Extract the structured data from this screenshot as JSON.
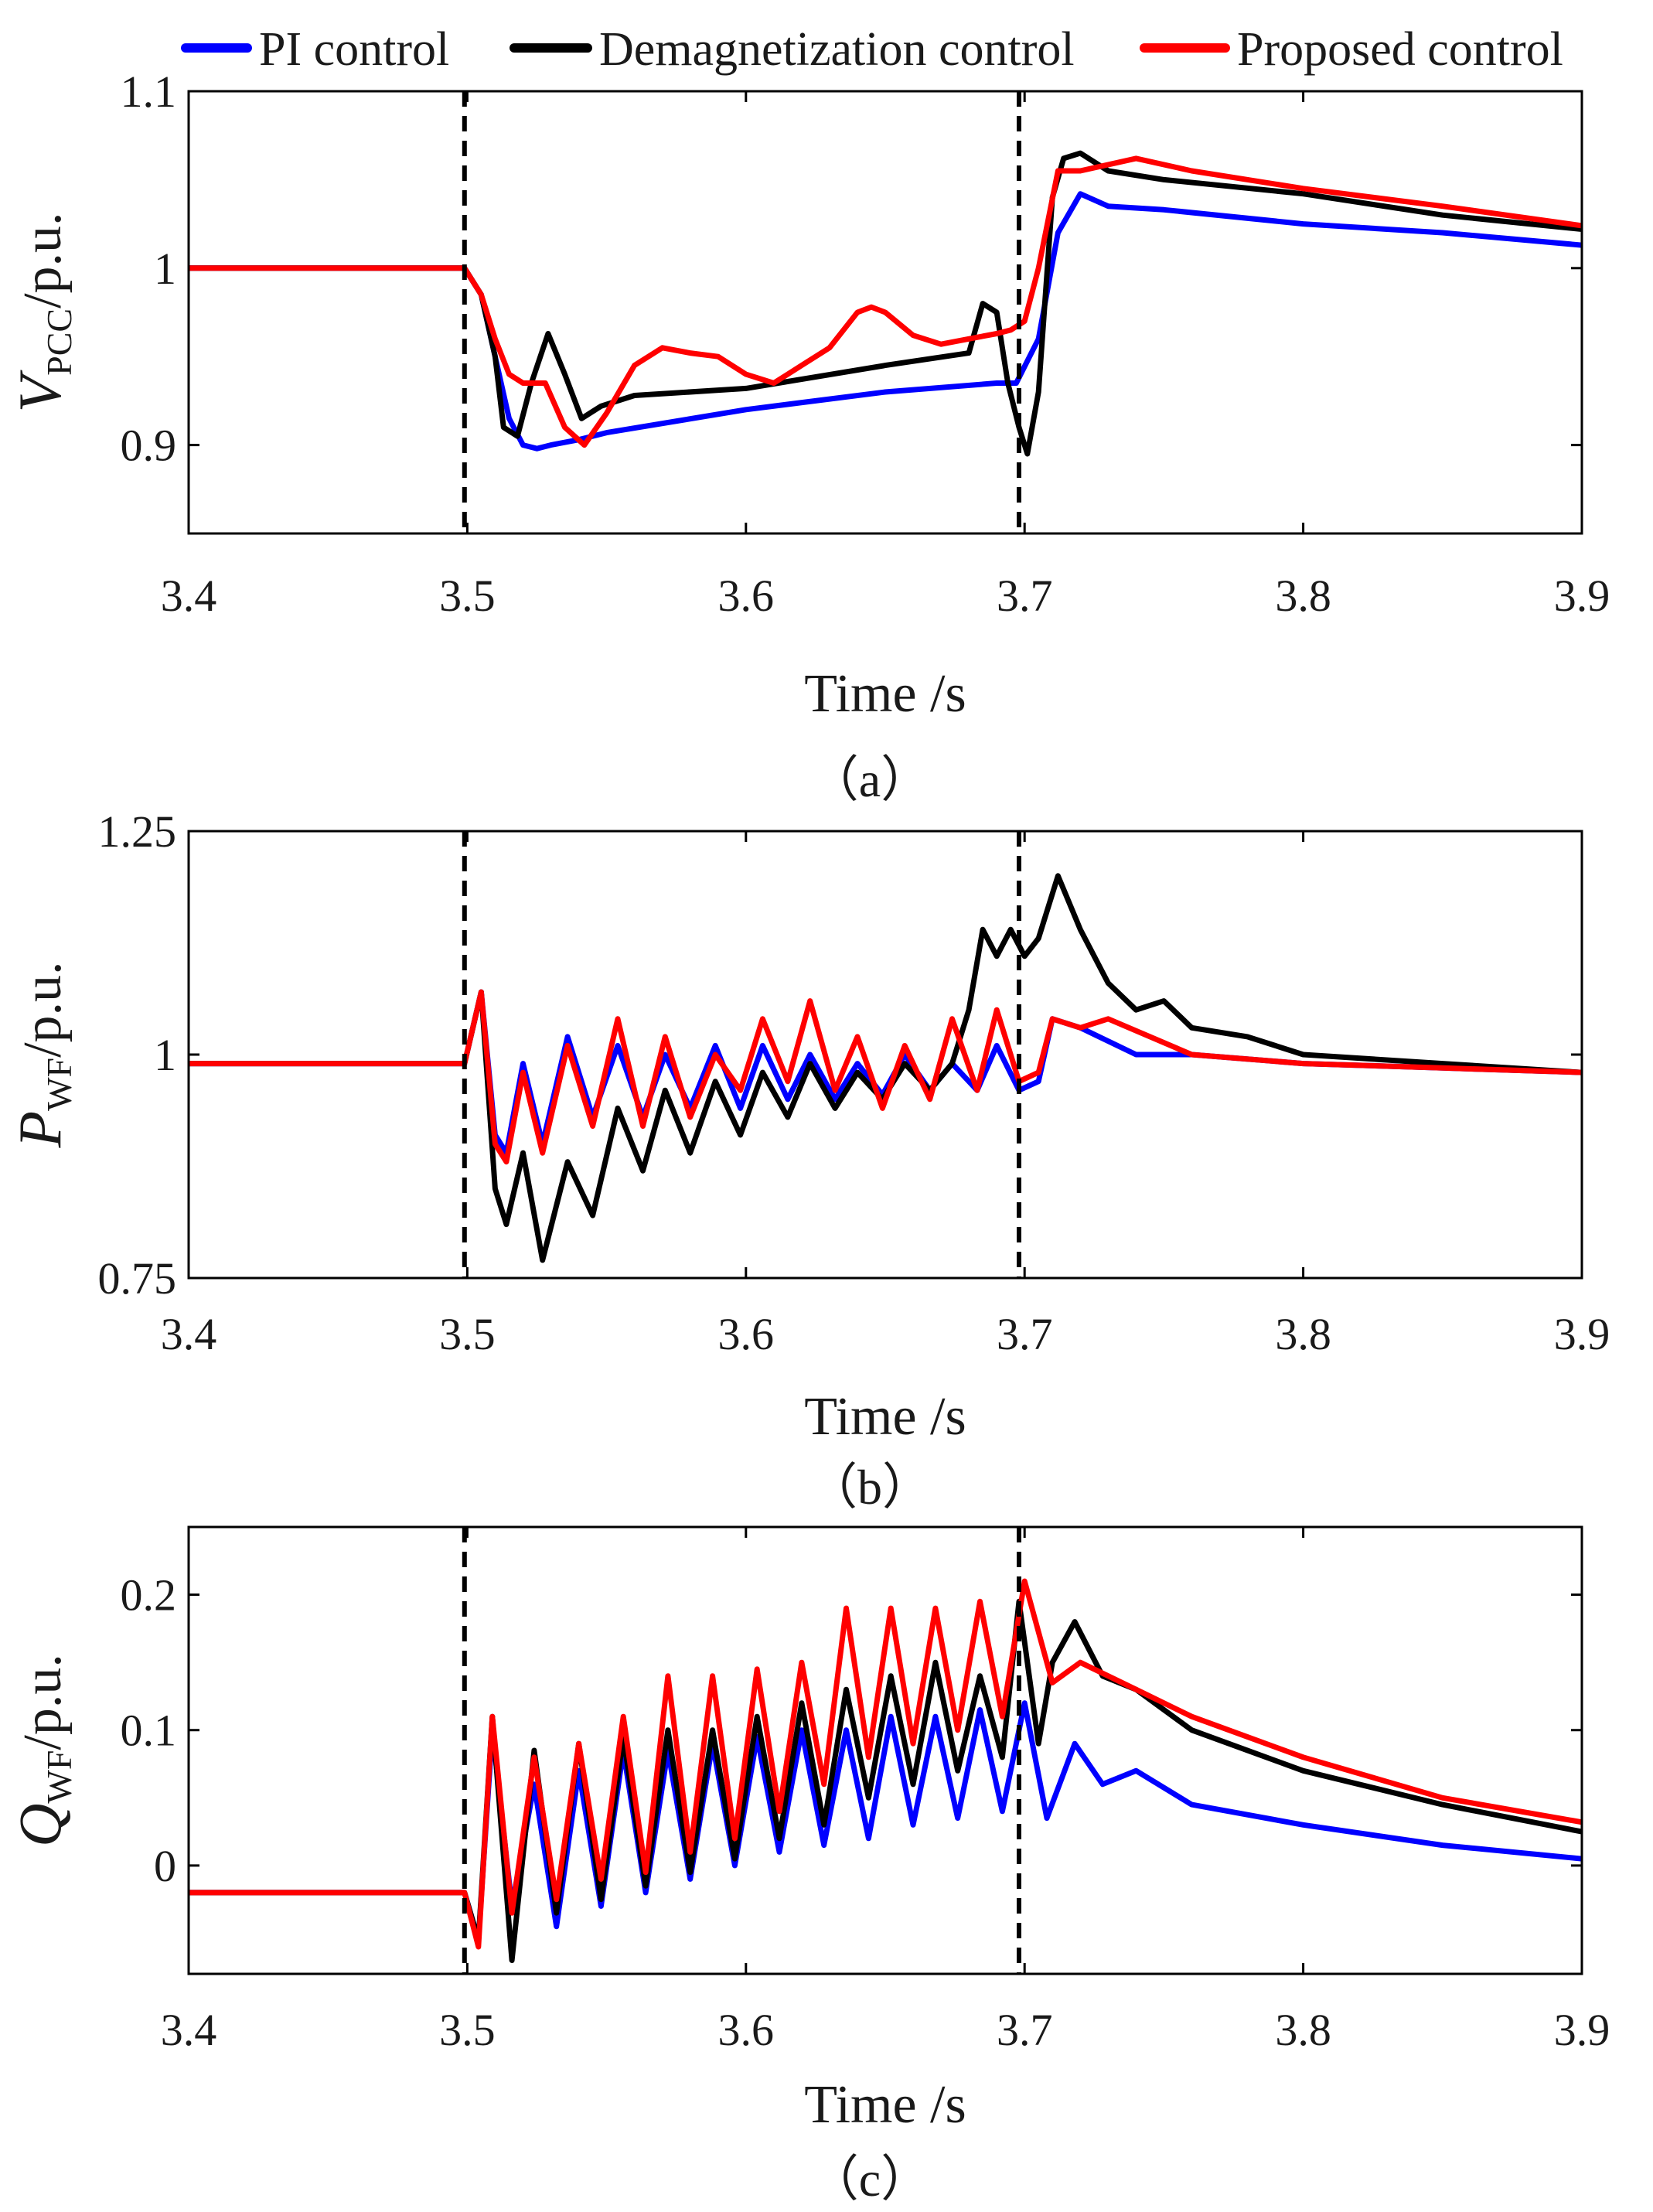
{
  "figure": {
    "legend": [
      {
        "label": "PI control",
        "color": "#0000ff"
      },
      {
        "label": "Demagnetization control",
        "color": "#000000"
      },
      {
        "label": "Proposed control",
        "color": "#ff0000"
      }
    ]
  },
  "chart_data": [
    {
      "type": "line",
      "panel": "a",
      "caption": "（a）",
      "xlabel": "Time /s",
      "ylabel": {
        "main": "V",
        "sub": "PCC",
        "rest": "/p.u."
      },
      "xlim": [
        3.4,
        3.9
      ],
      "ylim": [
        0.85,
        1.1
      ],
      "xticks": [
        3.4,
        3.5,
        3.6,
        3.7,
        3.8,
        3.9
      ],
      "xtick_labels": [
        "3.4",
        "3.5",
        "3.6",
        "3.7",
        "3.8",
        "3.9"
      ],
      "yticks": [
        0.9,
        1.0,
        1.1
      ],
      "ytick_labels": [
        "0.9",
        "1",
        "1.1"
      ],
      "vlines": [
        3.499,
        3.698
      ],
      "series": [
        {
          "name": "PI control",
          "color": "#0000ff",
          "x": [
            3.4,
            3.499,
            3.505,
            3.51,
            3.515,
            3.52,
            3.525,
            3.53,
            3.54,
            3.55,
            3.6,
            3.65,
            3.69,
            3.697,
            3.705,
            3.712,
            3.72,
            3.73,
            3.75,
            3.8,
            3.85,
            3.9
          ],
          "y": [
            1.0,
            1.0,
            0.985,
            0.95,
            0.915,
            0.9,
            0.898,
            0.9,
            0.903,
            0.907,
            0.92,
            0.93,
            0.935,
            0.935,
            0.96,
            1.02,
            1.042,
            1.035,
            1.033,
            1.025,
            1.02,
            1.013
          ]
        },
        {
          "name": "Demagnetization control",
          "color": "#000000",
          "x": [
            3.4,
            3.499,
            3.505,
            3.51,
            3.513,
            3.518,
            3.523,
            3.529,
            3.535,
            3.541,
            3.548,
            3.56,
            3.6,
            3.65,
            3.68,
            3.685,
            3.69,
            3.694,
            3.698,
            3.701,
            3.705,
            3.71,
            3.714,
            3.72,
            3.73,
            3.75,
            3.8,
            3.85,
            3.9
          ],
          "y": [
            1.0,
            1.0,
            0.985,
            0.95,
            0.91,
            0.905,
            0.935,
            0.963,
            0.94,
            0.915,
            0.922,
            0.928,
            0.932,
            0.945,
            0.952,
            0.98,
            0.975,
            0.935,
            0.91,
            0.895,
            0.93,
            1.04,
            1.062,
            1.065,
            1.055,
            1.05,
            1.042,
            1.03,
            1.022
          ]
        },
        {
          "name": "Proposed control",
          "color": "#ff0000",
          "x": [
            3.4,
            3.499,
            3.505,
            3.51,
            3.515,
            3.52,
            3.528,
            3.535,
            3.542,
            3.55,
            3.56,
            3.57,
            3.58,
            3.59,
            3.6,
            3.61,
            3.62,
            3.63,
            3.64,
            3.645,
            3.65,
            3.66,
            3.67,
            3.68,
            3.69,
            3.695,
            3.7,
            3.705,
            3.712,
            3.72,
            3.74,
            3.76,
            3.8,
            3.85,
            3.9
          ],
          "y": [
            1.0,
            1.0,
            0.985,
            0.96,
            0.94,
            0.935,
            0.935,
            0.91,
            0.9,
            0.918,
            0.945,
            0.955,
            0.952,
            0.95,
            0.94,
            0.935,
            0.945,
            0.955,
            0.975,
            0.978,
            0.975,
            0.962,
            0.957,
            0.96,
            0.963,
            0.965,
            0.97,
            1.0,
            1.055,
            1.055,
            1.062,
            1.055,
            1.045,
            1.035,
            1.024
          ]
        }
      ]
    },
    {
      "type": "line",
      "panel": "b",
      "caption": "（b）",
      "xlabel": "Time /s",
      "ylabel": {
        "main": "P",
        "sub": "WF",
        "rest": "/p.u."
      },
      "xlim": [
        3.4,
        3.9
      ],
      "ylim": [
        0.75,
        1.25
      ],
      "xticks": [
        3.4,
        3.5,
        3.6,
        3.7,
        3.8,
        3.9
      ],
      "xtick_labels": [
        "3.4",
        "3.5",
        "3.6",
        "3.7",
        "3.8",
        "3.9"
      ],
      "yticks": [
        0.75,
        1.0,
        1.25
      ],
      "ytick_labels": [
        "0.75",
        "1",
        "1.25"
      ],
      "vlines": [
        3.499,
        3.698
      ],
      "series": [
        {
          "name": "PI control",
          "color": "#0000ff",
          "x": [
            3.4,
            3.499,
            3.505,
            3.51,
            3.514,
            3.52,
            3.527,
            3.536,
            3.545,
            3.554,
            3.563,
            3.571,
            3.58,
            3.589,
            3.598,
            3.606,
            3.615,
            3.623,
            3.632,
            3.64,
            3.649,
            3.657,
            3.666,
            3.674,
            3.683,
            3.69,
            3.698,
            3.705,
            3.71,
            3.72,
            3.74,
            3.76,
            3.8,
            3.85,
            3.9
          ],
          "y": [
            0.99,
            0.99,
            1.07,
            0.91,
            0.89,
            0.99,
            0.9,
            1.02,
            0.93,
            1.01,
            0.93,
            1.0,
            0.94,
            1.01,
            0.94,
            1.01,
            0.95,
            1.0,
            0.95,
            0.99,
            0.955,
            1.0,
            0.96,
            0.99,
            0.96,
            1.01,
            0.96,
            0.97,
            1.04,
            1.03,
            1.0,
            1.0,
            0.99,
            0.985,
            0.98
          ]
        },
        {
          "name": "Demagnetization control",
          "color": "#000000",
          "x": [
            3.4,
            3.499,
            3.505,
            3.51,
            3.514,
            3.52,
            3.527,
            3.536,
            3.545,
            3.554,
            3.563,
            3.571,
            3.58,
            3.589,
            3.598,
            3.606,
            3.615,
            3.623,
            3.632,
            3.64,
            3.649,
            3.657,
            3.666,
            3.674,
            3.68,
            3.685,
            3.69,
            3.695,
            3.7,
            3.705,
            3.712,
            3.72,
            3.73,
            3.74,
            3.75,
            3.76,
            3.78,
            3.8,
            3.85,
            3.9
          ],
          "y": [
            0.99,
            0.99,
            1.07,
            0.85,
            0.81,
            0.89,
            0.77,
            0.88,
            0.82,
            0.94,
            0.87,
            0.96,
            0.89,
            0.97,
            0.91,
            0.98,
            0.93,
            0.99,
            0.94,
            0.98,
            0.95,
            0.99,
            0.96,
            0.99,
            1.05,
            1.14,
            1.11,
            1.14,
            1.11,
            1.13,
            1.2,
            1.14,
            1.08,
            1.05,
            1.06,
            1.03,
            1.02,
            1.0,
            0.99,
            0.98
          ]
        },
        {
          "name": "Proposed control",
          "color": "#ff0000",
          "x": [
            3.4,
            3.499,
            3.505,
            3.51,
            3.514,
            3.52,
            3.527,
            3.536,
            3.545,
            3.554,
            3.563,
            3.571,
            3.58,
            3.589,
            3.598,
            3.606,
            3.615,
            3.623,
            3.632,
            3.64,
            3.649,
            3.657,
            3.666,
            3.674,
            3.683,
            3.69,
            3.698,
            3.705,
            3.71,
            3.72,
            3.73,
            3.76,
            3.8,
            3.85,
            3.9
          ],
          "y": [
            0.99,
            0.99,
            1.07,
            0.9,
            0.88,
            0.98,
            0.89,
            1.01,
            0.92,
            1.04,
            0.92,
            1.02,
            0.93,
            1.0,
            0.96,
            1.04,
            0.97,
            1.06,
            0.96,
            1.02,
            0.94,
            1.01,
            0.95,
            1.04,
            0.96,
            1.05,
            0.97,
            0.98,
            1.04,
            1.03,
            1.04,
            1.0,
            0.99,
            0.985,
            0.98
          ]
        }
      ]
    },
    {
      "type": "line",
      "panel": "c",
      "caption": "（c）",
      "xlabel": "Time /s",
      "ylabel": {
        "main": "Q",
        "sub": "WF",
        "rest": "/p.u."
      },
      "xlim": [
        3.4,
        3.9
      ],
      "ylim": [
        -0.08,
        0.25
      ],
      "xticks": [
        3.4,
        3.5,
        3.6,
        3.7,
        3.8,
        3.9
      ],
      "xtick_labels": [
        "3.4",
        "3.5",
        "3.6",
        "3.7",
        "3.8",
        "3.9"
      ],
      "yticks": [
        0.0,
        0.1,
        0.2
      ],
      "ytick_labels": [
        "0",
        "0.1",
        "0.2"
      ],
      "vlines": [
        3.499,
        3.698
      ],
      "series": [
        {
          "name": "PI control",
          "color": "#0000ff",
          "x": [
            3.4,
            3.499,
            3.504,
            3.509,
            3.516,
            3.524,
            3.532,
            3.54,
            3.548,
            3.556,
            3.564,
            3.572,
            3.58,
            3.588,
            3.596,
            3.604,
            3.612,
            3.62,
            3.628,
            3.636,
            3.644,
            3.652,
            3.66,
            3.668,
            3.676,
            3.684,
            3.692,
            3.7,
            3.708,
            3.718,
            3.728,
            3.74,
            3.76,
            3.8,
            3.85,
            3.9
          ],
          "y": [
            -0.02,
            -0.02,
            -0.055,
            0.1,
            -0.03,
            0.06,
            -0.045,
            0.07,
            -0.03,
            0.085,
            -0.02,
            0.085,
            -0.01,
            0.09,
            0.0,
            0.095,
            0.01,
            0.1,
            0.015,
            0.1,
            0.02,
            0.11,
            0.03,
            0.11,
            0.035,
            0.115,
            0.04,
            0.12,
            0.035,
            0.09,
            0.06,
            0.07,
            0.045,
            0.03,
            0.015,
            0.005
          ]
        },
        {
          "name": "Demagnetization control",
          "color": "#000000",
          "x": [
            3.4,
            3.499,
            3.504,
            3.509,
            3.516,
            3.524,
            3.532,
            3.54,
            3.548,
            3.556,
            3.564,
            3.572,
            3.58,
            3.588,
            3.596,
            3.604,
            3.612,
            3.62,
            3.628,
            3.636,
            3.644,
            3.652,
            3.66,
            3.668,
            3.676,
            3.684,
            3.692,
            3.698,
            3.705,
            3.71,
            3.718,
            3.728,
            3.74,
            3.76,
            3.8,
            3.85,
            3.9
          ],
          "y": [
            -0.02,
            -0.02,
            -0.055,
            0.11,
            -0.07,
            0.085,
            -0.035,
            0.09,
            -0.025,
            0.095,
            -0.015,
            0.1,
            -0.005,
            0.1,
            0.005,
            0.11,
            0.02,
            0.12,
            0.03,
            0.13,
            0.05,
            0.14,
            0.06,
            0.15,
            0.07,
            0.14,
            0.08,
            0.195,
            0.09,
            0.15,
            0.18,
            0.14,
            0.13,
            0.1,
            0.07,
            0.045,
            0.025
          ]
        },
        {
          "name": "Proposed control",
          "color": "#ff0000",
          "x": [
            3.4,
            3.499,
            3.504,
            3.509,
            3.516,
            3.524,
            3.532,
            3.54,
            3.548,
            3.556,
            3.564,
            3.572,
            3.58,
            3.588,
            3.596,
            3.604,
            3.612,
            3.62,
            3.628,
            3.636,
            3.644,
            3.652,
            3.66,
            3.668,
            3.676,
            3.684,
            3.692,
            3.7,
            3.71,
            3.72,
            3.74,
            3.76,
            3.8,
            3.85,
            3.9
          ],
          "y": [
            -0.02,
            -0.02,
            -0.06,
            0.11,
            -0.035,
            0.08,
            -0.025,
            0.09,
            -0.01,
            0.11,
            -0.005,
            0.14,
            0.01,
            0.14,
            0.02,
            0.145,
            0.04,
            0.15,
            0.06,
            0.19,
            0.08,
            0.19,
            0.09,
            0.19,
            0.1,
            0.195,
            0.11,
            0.21,
            0.135,
            0.15,
            0.13,
            0.11,
            0.08,
            0.05,
            0.032
          ]
        }
      ]
    }
  ]
}
